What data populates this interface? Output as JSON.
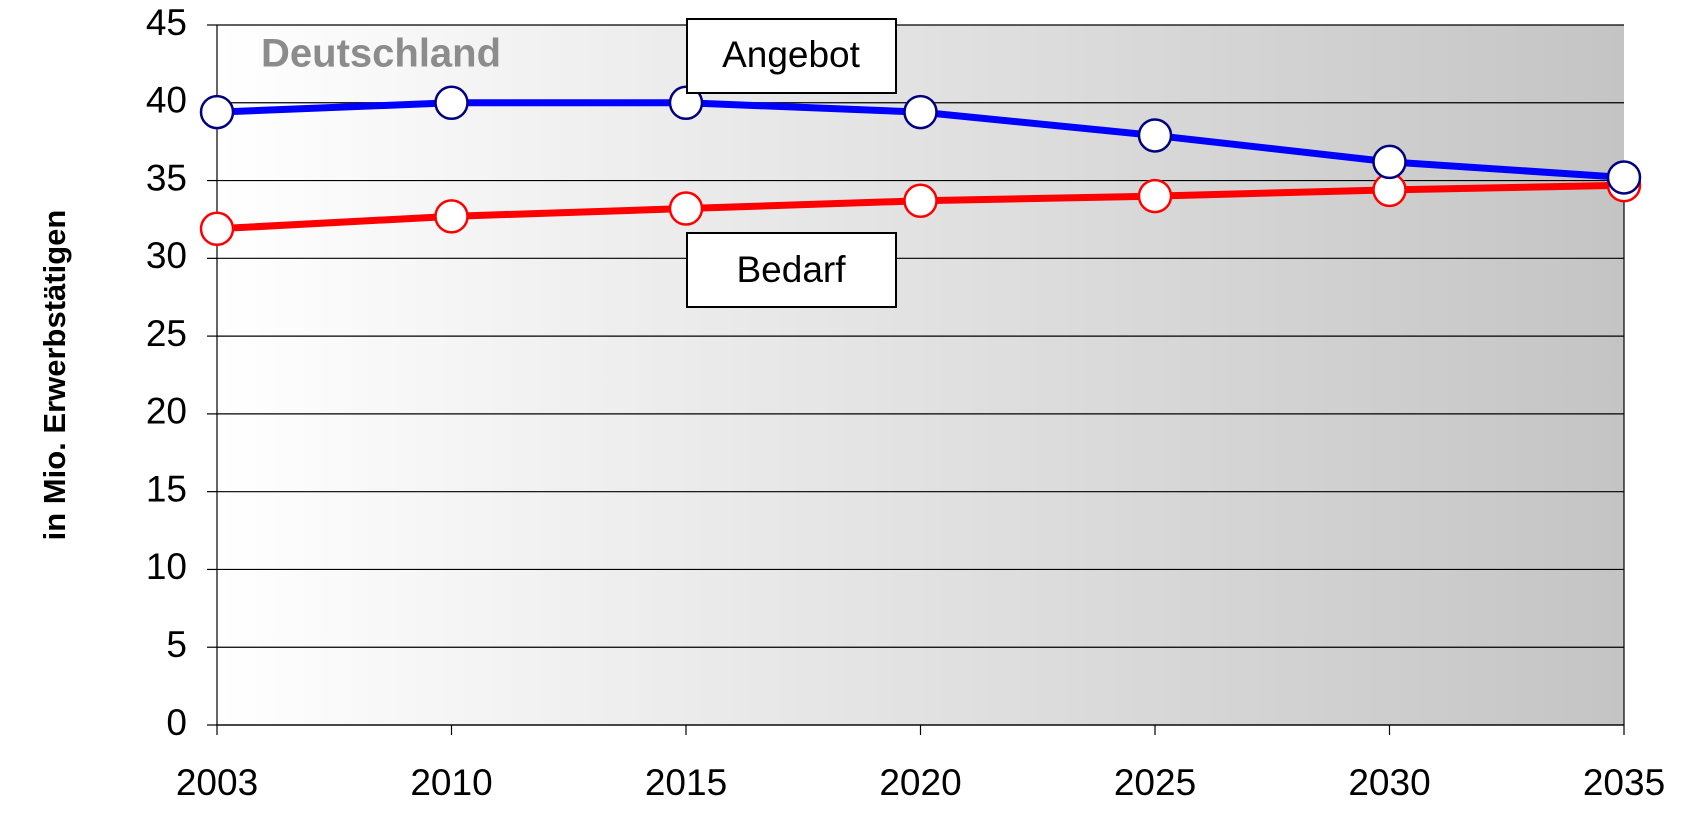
{
  "chart_data": {
    "type": "line",
    "ylabel": "in Mio. Erwerbstätigen",
    "annotations": [
      "Deutschland",
      "Angebot",
      "Bedarf"
    ],
    "categories": [
      "2003",
      "2010",
      "2015",
      "2020",
      "2025",
      "2030",
      "2035"
    ],
    "series": [
      {
        "name": "Angebot",
        "color": "#0000ff",
        "marker_edge_color": "#000080",
        "values": [
          39.4,
          40.0,
          40.0,
          39.4,
          37.9,
          36.2,
          35.2
        ]
      },
      {
        "name": "Bedarf",
        "color": "#ff0000",
        "marker_edge_color": "#ff0000",
        "values": [
          31.9,
          32.7,
          33.2,
          33.7,
          34.0,
          34.4,
          34.7
        ]
      }
    ],
    "ylim": [
      0,
      45
    ],
    "yticks": [
      0,
      5,
      10,
      15,
      20,
      25,
      30,
      35,
      40,
      45
    ],
    "grid": true
  }
}
